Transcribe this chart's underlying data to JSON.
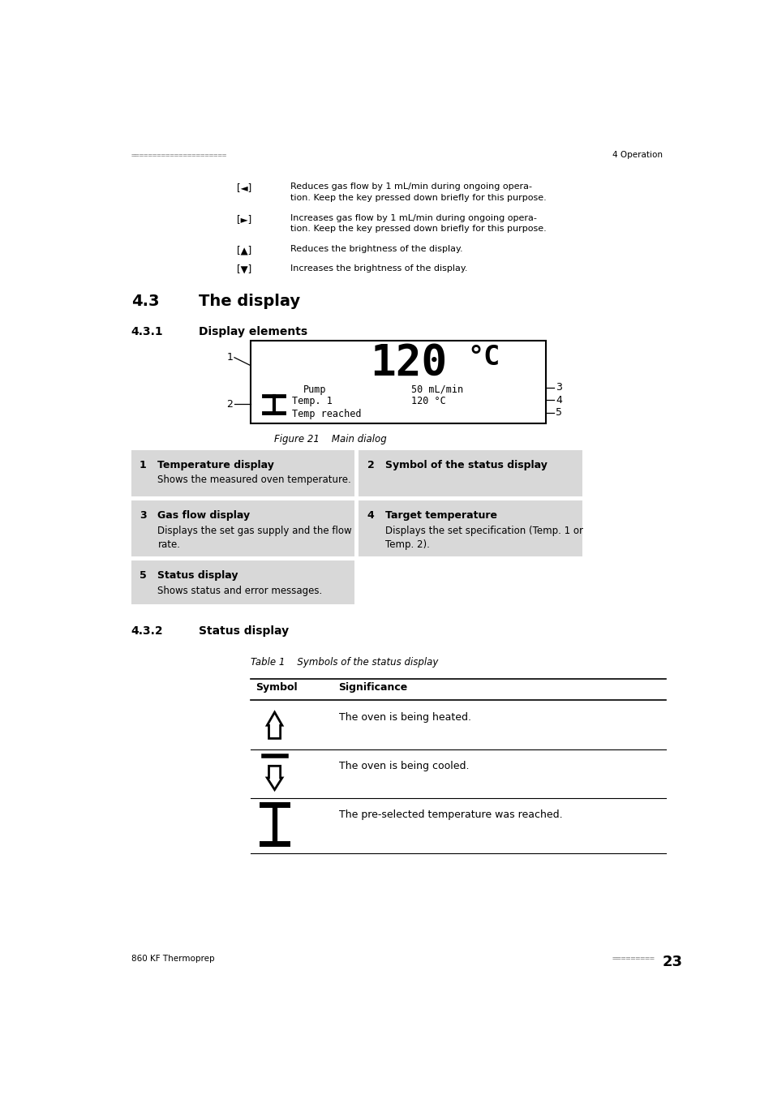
{
  "bg_color": "#ffffff",
  "text_color": "#000000",
  "gray_color": "#888888",
  "light_gray": "#d8d8d8",
  "page_width": 9.54,
  "page_height": 13.5,
  "header_dots": "======================",
  "header_right": "4 Operation",
  "footer_left": "860 KF Thermoprep",
  "footer_dots": "=========",
  "footer_page": "23",
  "key_items": [
    {
      "key": "[◄]",
      "desc": "Reduces gas flow by 1 mL/min during ongoing opera-\ntion. Keep the key pressed down briefly for this purpose."
    },
    {
      "key": "[►]",
      "desc": "Increases gas flow by 1 mL/min during ongoing opera-\ntion. Keep the key pressed down briefly for this purpose."
    },
    {
      "key": "[▲]",
      "desc": "Reduces the brightness of the display."
    },
    {
      "key": "[▼]",
      "desc": "Increases the brightness of the display."
    }
  ],
  "section_43": "4.3",
  "section_43_title": "The display",
  "section_431": "4.3.1",
  "section_431_title": "Display elements",
  "figure_caption": "Figure 21    Main dialog",
  "table_items": [
    {
      "num": "1",
      "title": "Temperature display",
      "desc": "Shows the measured oven temperature.",
      "col": 0
    },
    {
      "num": "2",
      "title": "Symbol of the status display",
      "desc": "",
      "col": 1
    },
    {
      "num": "3",
      "title": "Gas flow display",
      "desc": "Displays the set gas supply and the flow\nrate.",
      "col": 0
    },
    {
      "num": "4",
      "title": "Target temperature",
      "desc": "Displays the set specification (Temp. 1 or\nTemp. 2).",
      "col": 1
    },
    {
      "num": "5",
      "title": "Status display",
      "desc": "Shows status and error messages.",
      "col": 0
    }
  ],
  "section_432": "4.3.2",
  "section_432_title": "Status display",
  "table1_caption": "Table 1    Symbols of the status display",
  "table1_header": [
    "Symbol",
    "Significance"
  ],
  "table1_rows": [
    {
      "significance": "The oven is being heated."
    },
    {
      "significance": "The oven is being cooled."
    },
    {
      "significance": "The pre-selected temperature was reached."
    }
  ]
}
